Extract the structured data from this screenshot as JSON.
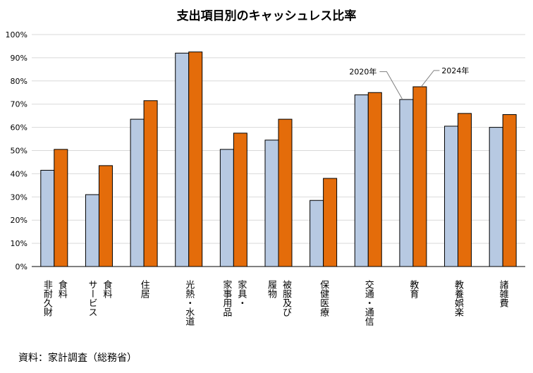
{
  "chart_data": {
    "type": "bar",
    "title": "支出項目別のキャッシュレス比率",
    "ylim": [
      0,
      100
    ],
    "yticks": [
      0,
      10,
      20,
      30,
      40,
      50,
      60,
      70,
      80,
      90,
      100
    ],
    "ytick_labels": [
      "0%",
      "10%",
      "20%",
      "30%",
      "40%",
      "50%",
      "60%",
      "70%",
      "80%",
      "90%",
      "100%"
    ],
    "grid": true,
    "categories": [
      "食料 非耐久財",
      "食料 サービス",
      "住居",
      "光熱・水道",
      "家具・家事用品",
      "被服及び履物",
      "保健医療",
      "交通・通信",
      "教育",
      "教養娯楽",
      "諸雑費"
    ],
    "category_columns": [
      [
        "食料",
        "非耐久財"
      ],
      [
        "食料",
        "サービス"
      ],
      [
        "住居"
      ],
      [
        "光熱・水道"
      ],
      [
        "家具・",
        "家事用品"
      ],
      [
        "被服及び",
        "履物"
      ],
      [
        "保健医療"
      ],
      [
        "交通・通信"
      ],
      [
        "教育"
      ],
      [
        "教養娯楽"
      ],
      [
        "諸雑費"
      ]
    ],
    "series": [
      {
        "name": "2020年",
        "color": "#b7c9e2",
        "values": [
          41.5,
          31,
          63.5,
          92,
          50.5,
          54.5,
          28.5,
          74,
          72,
          60.5,
          60
        ]
      },
      {
        "name": "2024年",
        "color": "#e46c0a",
        "values": [
          50.5,
          43.5,
          71.5,
          92.5,
          57.5,
          63.5,
          38,
          75,
          77.5,
          66,
          65.5
        ]
      }
    ],
    "legend": "inline annotations near 教育"
  },
  "source_label": "資料：家計調査（総務省）"
}
